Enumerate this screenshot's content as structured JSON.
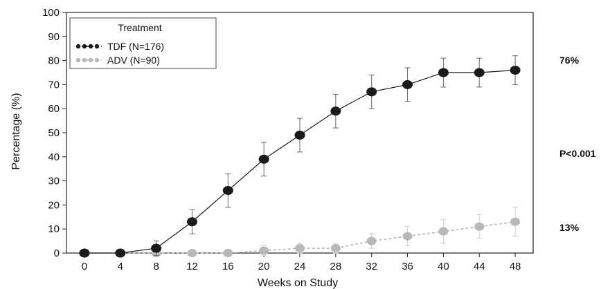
{
  "chart_data": {
    "type": "line",
    "xlabel": "Weeks on Study",
    "ylabel": "Percentage (%)",
    "xlim": [
      -2,
      50
    ],
    "ylim": [
      0,
      100
    ],
    "xticks": [
      0,
      4,
      8,
      12,
      16,
      20,
      24,
      28,
      32,
      36,
      40,
      44,
      48
    ],
    "yticks": [
      0,
      10,
      20,
      30,
      40,
      50,
      60,
      70,
      80,
      90,
      100
    ],
    "grid": false,
    "legend": {
      "title": "Treatment",
      "placement": "top-left"
    },
    "x": [
      0,
      4,
      8,
      12,
      16,
      20,
      24,
      28,
      32,
      36,
      40,
      44,
      48
    ],
    "series": [
      {
        "name": "TDF (N=176)",
        "color": "#1a1a1a",
        "values": [
          0,
          0,
          2,
          13,
          26,
          39,
          49,
          59,
          67,
          70,
          75,
          75,
          76
        ],
        "error": [
          0,
          0,
          3,
          5,
          7,
          7,
          7,
          7,
          7,
          7,
          6,
          6,
          6
        ]
      },
      {
        "name": "ADV (N=90)",
        "color": "#b8b8b8",
        "values": [
          0,
          0,
          0,
          0,
          0,
          1,
          2,
          2,
          5,
          7,
          9,
          11,
          13
        ],
        "error": [
          0,
          0,
          0,
          0,
          0,
          2,
          2,
          2,
          3,
          4,
          5,
          5,
          6
        ]
      }
    ],
    "annotations": [
      "76%",
      "P<0.001",
      "13%"
    ]
  }
}
